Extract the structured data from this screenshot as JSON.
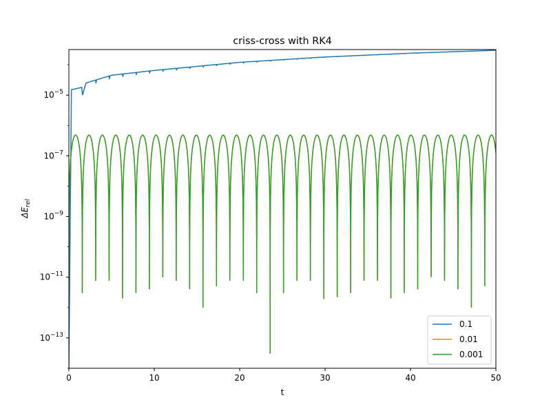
{
  "chart_data": {
    "type": "line",
    "title": "criss-cross with RK4",
    "xlabel": "t",
    "ylabel": "ΔE_rel",
    "xlim": [
      0,
      50
    ],
    "ylim_exponent": [
      -14,
      -3.5
    ],
    "y_scale": "log",
    "x_ticks": [
      "0",
      "10",
      "20",
      "30",
      "40",
      "50"
    ],
    "y_ticks": [
      {
        "base": "10",
        "exp": "−5",
        "value_exp": -5
      },
      {
        "base": "10",
        "exp": "−7",
        "value_exp": -7
      },
      {
        "base": "10",
        "exp": "−9",
        "value_exp": -9
      },
      {
        "base": "10",
        "exp": "−11",
        "value_exp": -11
      },
      {
        "base": "10",
        "exp": "−13",
        "value_exp": -13
      }
    ],
    "grid": false,
    "legend_position": "lower-right",
    "series": [
      {
        "name": "0.1",
        "color": "#1f77b4",
        "description_points": [
          [
            0.0,
            1e-14
          ],
          [
            0.3,
            1.5e-05
          ],
          [
            1.5,
            1.8e-05
          ],
          [
            1.6,
            1e-05
          ],
          [
            2.0,
            2.5e-05
          ],
          [
            5,
            4.5e-05
          ],
          [
            10,
            6.5e-05
          ],
          [
            20,
            0.00012
          ],
          [
            30,
            0.00018
          ],
          [
            40,
            0.00024
          ],
          [
            50,
            0.0003
          ]
        ]
      },
      {
        "name": "0.01",
        "color": "#ff7f0e",
        "peak": 4.8e-07,
        "period": 1.571
      },
      {
        "name": "0.001",
        "color": "#2ca02c",
        "peak": 4.8e-07,
        "period": 1.571
      }
    ]
  }
}
